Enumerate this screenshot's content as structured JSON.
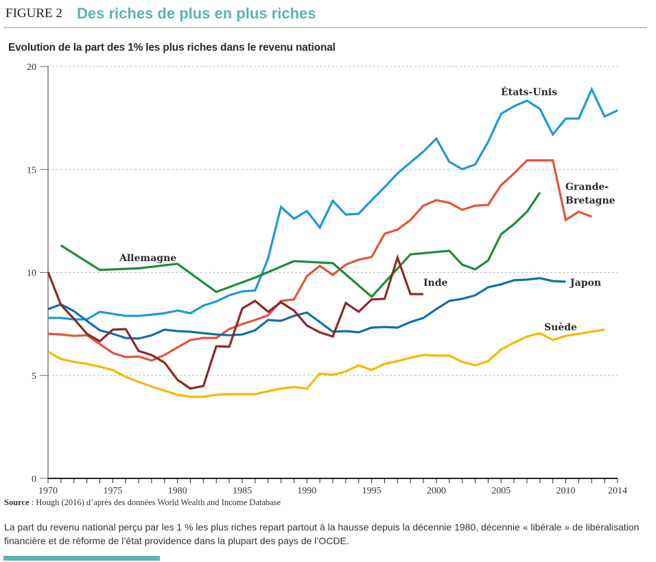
{
  "header": {
    "figure_label": "FIGURE 2",
    "title": "Des riches de plus en plus riches",
    "accent_color": "#5ab4ae"
  },
  "chart_data": {
    "type": "line",
    "title": "Evolution de la part des 1% les plus riches dans le revenu national",
    "xlabel": "",
    "ylabel": "",
    "xlim": [
      1970,
      2014
    ],
    "ylim": [
      0,
      20
    ],
    "x_ticks": [
      "1970",
      "1975",
      "1980",
      "1985",
      "1990",
      "1995",
      "2000",
      "2005",
      "2010",
      "2014"
    ],
    "y_ticks": [
      "0",
      "5",
      "10",
      "15",
      "20"
    ],
    "grid": "horizontal dashed",
    "series": [
      {
        "name": "États-Unis",
        "color": "#1c9ad6",
        "years": [
          1970,
          1971,
          1972,
          1973,
          1974,
          1975,
          1976,
          1977,
          1978,
          1979,
          1980,
          1981,
          1982,
          1983,
          1984,
          1985,
          1986,
          1987,
          1988,
          1989,
          1990,
          1991,
          1992,
          1993,
          1994,
          1995,
          1996,
          1997,
          1998,
          1999,
          2000,
          2001,
          2002,
          2003,
          2004,
          2005,
          2006,
          2007,
          2008,
          2009,
          2010,
          2011,
          2012,
          2013,
          2014
        ],
        "values": [
          7.79,
          7.79,
          7.72,
          7.72,
          8.09,
          7.99,
          7.89,
          7.89,
          7.95,
          8.02,
          8.15,
          8.02,
          8.39,
          8.59,
          8.89,
          9.08,
          9.12,
          10.68,
          13.18,
          12.61,
          12.98,
          12.18,
          13.48,
          12.81,
          12.85,
          13.51,
          14.14,
          14.81,
          15.34,
          15.87,
          16.5,
          15.37,
          15.01,
          15.24,
          16.34,
          17.7,
          18.07,
          18.34,
          17.94,
          16.7,
          17.47,
          17.47,
          18.9,
          17.57,
          17.87
        ]
      },
      {
        "name": "Grande-Bretagne",
        "color": "#e8523a",
        "years": [
          1970,
          1971,
          1972,
          1973,
          1974,
          1975,
          1976,
          1977,
          1978,
          1979,
          1980,
          1981,
          1982,
          1983,
          1984,
          1985,
          1986,
          1987,
          1988,
          1989,
          1990,
          1991,
          1992,
          1993,
          1994,
          1995,
          1996,
          1997,
          1998,
          1999,
          2000,
          2001,
          2002,
          2003,
          2004,
          2005,
          2006,
          2007,
          2008,
          2009,
          2010,
          2011,
          2012
        ],
        "values": [
          7.02,
          6.99,
          6.92,
          6.95,
          6.52,
          6.09,
          5.89,
          5.92,
          5.72,
          5.99,
          6.36,
          6.72,
          6.82,
          6.82,
          7.25,
          7.49,
          7.69,
          7.92,
          8.62,
          8.69,
          9.82,
          10.32,
          9.88,
          10.38,
          10.62,
          10.75,
          11.88,
          12.08,
          12.55,
          13.24,
          13.51,
          13.38,
          13.04,
          13.24,
          13.28,
          14.24,
          14.81,
          15.44,
          15.44,
          15.44,
          12.55,
          12.95,
          12.71
        ]
      },
      {
        "name": "Allemagne",
        "color": "#1e8c3a",
        "years": [
          1971,
          1974,
          1977,
          1980,
          1983,
          1986,
          1989,
          1992,
          1995,
          1998,
          2001,
          2002,
          2003,
          2004,
          2005,
          2006,
          2007,
          2008
        ],
        "values": [
          11.31,
          10.12,
          10.2,
          10.42,
          9.05,
          9.75,
          10.55,
          10.45,
          8.82,
          10.88,
          11.05,
          10.38,
          10.15,
          10.58,
          11.85,
          12.35,
          12.95,
          13.88
        ]
      },
      {
        "name": "Japon",
        "color": "#1170a8",
        "years": [
          1970,
          1971,
          1972,
          1973,
          1974,
          1975,
          1976,
          1977,
          1978,
          1979,
          1980,
          1981,
          1982,
          1983,
          1984,
          1985,
          1986,
          1987,
          1988,
          1989,
          1990,
          1991,
          1992,
          1993,
          1994,
          1995,
          1996,
          1997,
          1998,
          1999,
          2000,
          2001,
          2002,
          2003,
          2004,
          2005,
          2006,
          2007,
          2008,
          2009,
          2010
        ],
        "values": [
          8.22,
          8.45,
          8.12,
          7.65,
          7.19,
          7.02,
          6.82,
          6.79,
          6.95,
          7.22,
          7.15,
          7.12,
          7.05,
          6.99,
          6.95,
          6.99,
          7.19,
          7.69,
          7.65,
          7.89,
          8.05,
          7.59,
          7.12,
          7.15,
          7.09,
          7.32,
          7.35,
          7.32,
          7.59,
          7.79,
          8.22,
          8.62,
          8.72,
          8.89,
          9.28,
          9.42,
          9.62,
          9.65,
          9.72,
          9.58,
          9.55
        ]
      },
      {
        "name": "Inde",
        "color": "#8b2a2a",
        "years": [
          1970,
          1971,
          1972,
          1973,
          1974,
          1975,
          1976,
          1977,
          1978,
          1979,
          1980,
          1981,
          1982,
          1983,
          1984,
          1985,
          1986,
          1987,
          1988,
          1989,
          1990,
          1991,
          1992,
          1993,
          1994,
          1995,
          1996,
          1997,
          1998,
          1999
        ],
        "values": [
          10.02,
          8.42,
          7.75,
          7.02,
          6.66,
          7.22,
          7.25,
          6.19,
          5.99,
          5.62,
          4.79,
          4.36,
          4.49,
          6.42,
          6.39,
          8.25,
          8.62,
          8.09,
          8.55,
          8.15,
          7.42,
          7.09,
          6.89,
          8.52,
          8.09,
          8.69,
          8.72,
          10.72,
          8.95,
          8.95
        ]
      },
      {
        "name": "Suède",
        "color": "#f5b800",
        "years": [
          1970,
          1971,
          1972,
          1973,
          1974,
          1975,
          1976,
          1977,
          1978,
          1979,
          1980,
          1981,
          1982,
          1983,
          1984,
          1985,
          1986,
          1987,
          1988,
          1989,
          1990,
          1991,
          1992,
          1993,
          1994,
          1995,
          1996,
          1997,
          1998,
          1999,
          2000,
          2001,
          2002,
          2003,
          2004,
          2005,
          2006,
          2007,
          2008,
          2009,
          2010,
          2011,
          2012,
          2013
        ],
        "values": [
          6.16,
          5.79,
          5.66,
          5.56,
          5.42,
          5.26,
          4.93,
          4.69,
          4.46,
          4.26,
          4.06,
          3.96,
          3.96,
          4.06,
          4.09,
          4.09,
          4.09,
          4.23,
          4.36,
          4.43,
          4.36,
          5.09,
          5.02,
          5.19,
          5.49,
          5.26,
          5.56,
          5.69,
          5.86,
          5.99,
          5.96,
          5.96,
          5.66,
          5.49,
          5.69,
          6.26,
          6.59,
          6.89,
          7.05,
          6.72,
          6.92,
          7.02,
          7.12,
          7.22
        ]
      }
    ],
    "series_labels": {
      "us": "États-Unis",
      "uk_line1": "Grande-",
      "uk_line2": "Bretagne",
      "de": "Allemagne",
      "in": "Inde",
      "jp": "Japon",
      "se": "Suède"
    }
  },
  "source": {
    "label": "Source",
    "text": " : Hough (2016) d’après des données World Wealth and Income Database"
  },
  "caption": "La part du revenu national perçu par les 1 % les plus riches repart partout à la hausse depuis la décennie 1980, décennie « libérale » de libéralisation financière et de réforme de l’état providence dans la plupart des pays de l’OCDE."
}
